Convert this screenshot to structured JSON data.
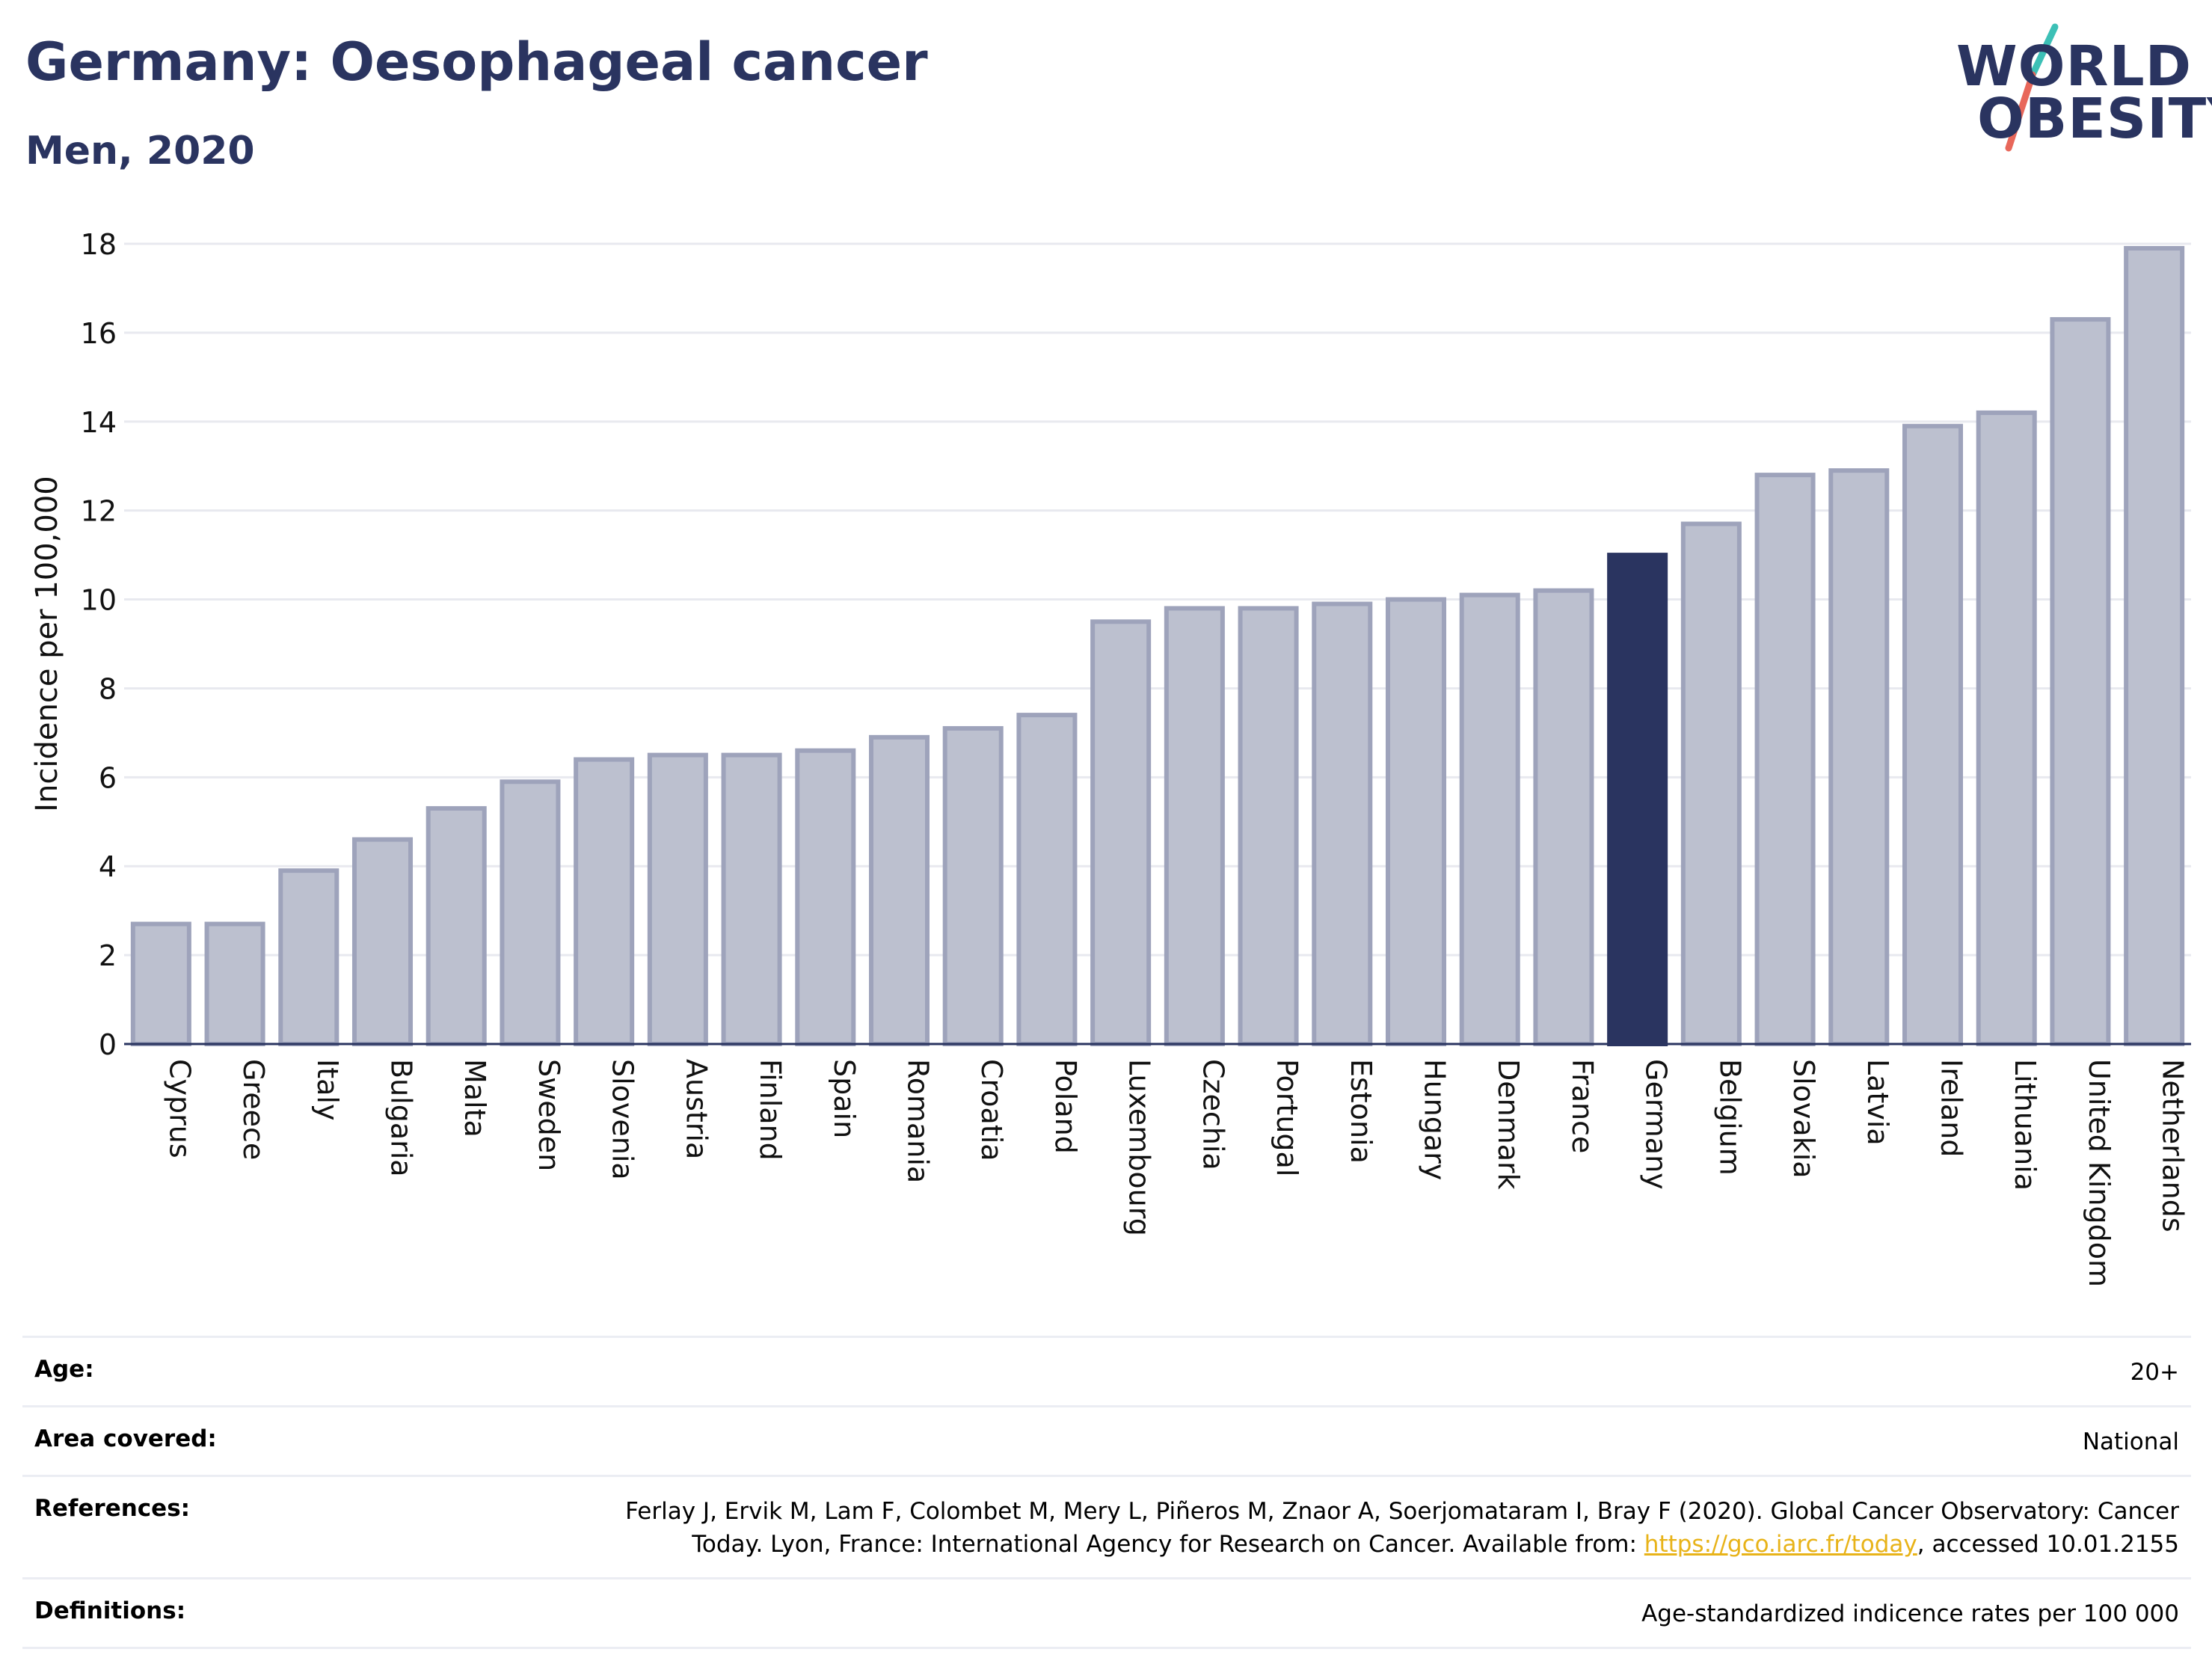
{
  "header": {
    "title": "Germany: Oesophageal cancer",
    "subtitle": "Men, 2020"
  },
  "logo": {
    "line1": "WORLD",
    "line2": "OBESITY",
    "slash_colors": [
      "#3cc0b6",
      "#e8675a"
    ]
  },
  "colors": {
    "bar_default": "#bcc0cf",
    "bar_default_border": "#9ea3bb",
    "bar_highlight": "#2a3460",
    "grid": "#e8e9ef",
    "axis": "#2a3460",
    "text": "#2a3460",
    "tick_text": "#111111"
  },
  "chart_data": {
    "type": "bar",
    "ylabel": "Incidence per 100,000",
    "ylim": [
      0,
      18
    ],
    "yticks": [
      0,
      2,
      4,
      6,
      8,
      10,
      12,
      14,
      16,
      18
    ],
    "grid": true,
    "highlight": "Germany",
    "categories": [
      "Cyprus",
      "Greece",
      "Italy",
      "Bulgaria",
      "Malta",
      "Sweden",
      "Slovenia",
      "Austria",
      "Finland",
      "Spain",
      "Romania",
      "Croatia",
      "Poland",
      "Luxembourg",
      "Czechia",
      "Portugal",
      "Estonia",
      "Hungary",
      "Denmark",
      "France",
      "Germany",
      "Belgium",
      "Slovakia",
      "Latvia",
      "Ireland",
      "Lithuania",
      "United Kingdom",
      "Netherlands"
    ],
    "values": [
      2.7,
      2.7,
      3.9,
      4.6,
      5.3,
      5.9,
      6.4,
      6.5,
      6.5,
      6.6,
      6.9,
      7.1,
      7.4,
      9.5,
      9.8,
      9.8,
      9.9,
      10.0,
      10.1,
      10.2,
      11.0,
      11.7,
      12.8,
      12.9,
      13.9,
      14.2,
      16.3,
      17.9
    ]
  },
  "info": {
    "age": {
      "label": "Age:",
      "value": "20+"
    },
    "area": {
      "label": "Area covered:",
      "value": "National"
    },
    "references": {
      "label": "References:",
      "text_before": "Ferlay J, Ervik M, Lam F, Colombet M, Mery L, Piñeros M, Znaor A, Soerjomataram I, Bray F (2020). Global Cancer Observatory: Cancer Today. Lyon, France: International Agency for Research on Cancer. Available from: ",
      "link": "https://gco.iarc.fr/today",
      "text_after": ", accessed 10.01.2155"
    },
    "definitions": {
      "label": "Definitions:",
      "value": "Age-standardized indicence rates per 100 000"
    }
  }
}
